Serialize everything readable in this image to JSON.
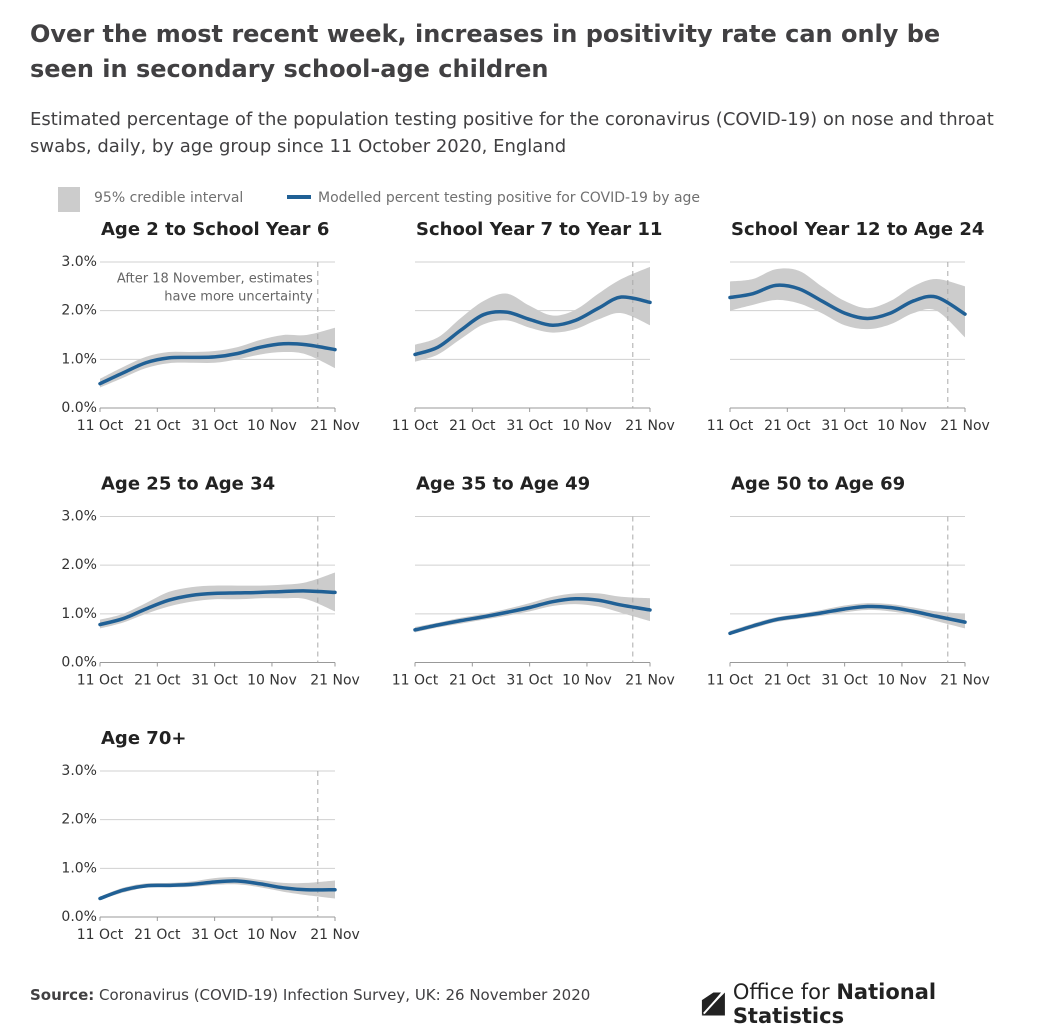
{
  "title": "Over the most recent week, increases in positivity rate can only be seen in secondary school-age children",
  "subtitle": "Estimated percentage of the population testing positive for the coronavirus (COVID-19) on nose and throat swabs, daily, by age group since 11 October 2020, England",
  "legend": {
    "band": "95% credible interval",
    "line": "Modelled percent testing positive for COVID-19 by age",
    "band_color": "#cccccc",
    "line_color": "#206095"
  },
  "source": {
    "label": "Source:",
    "text": "Coronavirus (COVID-19) Infection Survey, UK: 26 November 2020"
  },
  "logo": [
    "Office for",
    "National Statistics"
  ],
  "chart_data": [
    {
      "type": "line",
      "title": "Age 2 to School Year 6",
      "x": [
        "11 Oct",
        "15 Oct",
        "19 Oct",
        "23 Oct",
        "27 Oct",
        "31 Oct",
        "4 Nov",
        "8 Nov",
        "12 Nov",
        "16 Nov",
        "21 Nov"
      ],
      "series": [
        {
          "name": "Modelled percent testing positive for COVID-19 by age",
          "color": "#206095",
          "values": [
            0.5,
            0.72,
            0.93,
            1.03,
            1.04,
            1.05,
            1.12,
            1.25,
            1.32,
            1.3,
            1.2
          ]
        }
      ],
      "band": {
        "name": "95% credible interval",
        "color": "#cccccc",
        "lower": [
          0.42,
          0.62,
          0.82,
          0.92,
          0.93,
          0.93,
          1.0,
          1.1,
          1.15,
          1.1,
          0.82
        ],
        "upper": [
          0.6,
          0.84,
          1.05,
          1.15,
          1.15,
          1.17,
          1.25,
          1.4,
          1.5,
          1.5,
          1.65
        ]
      },
      "xlim": [
        "11 Oct",
        "21 Nov"
      ],
      "xticks": [
        "11 Oct",
        "21 Oct",
        "31 Oct",
        "10 Nov",
        "21 Nov"
      ],
      "ylim": [
        0,
        3
      ],
      "yticks": [
        {
          "value": 0,
          "label": "0.0%"
        },
        {
          "value": 1,
          "label": "1.0%"
        },
        {
          "value": 2,
          "label": "2.0%"
        },
        {
          "value": 3,
          "label": "3.0%"
        }
      ],
      "grid": true,
      "vline": "18 Nov",
      "annotation": [
        "After 18 November, estimates",
        "have more uncertainty"
      ]
    },
    {
      "type": "line",
      "title": "School Year 7 to Year 11",
      "x": [
        "11 Oct",
        "15 Oct",
        "19 Oct",
        "23 Oct",
        "27 Oct",
        "31 Oct",
        "4 Nov",
        "8 Nov",
        "12 Nov",
        "16 Nov",
        "21 Nov"
      ],
      "series": [
        {
          "name": "Modelled percent testing positive for COVID-19 by age",
          "color": "#206095",
          "values": [
            1.1,
            1.25,
            1.6,
            1.92,
            1.97,
            1.82,
            1.7,
            1.8,
            2.05,
            2.28,
            2.17
          ]
        }
      ],
      "band": {
        "name": "95% credible interval",
        "color": "#cccccc",
        "lower": [
          0.95,
          1.1,
          1.42,
          1.72,
          1.8,
          1.65,
          1.55,
          1.62,
          1.82,
          1.95,
          1.7
        ],
        "upper": [
          1.3,
          1.45,
          1.85,
          2.2,
          2.35,
          2.1,
          1.9,
          2.02,
          2.35,
          2.65,
          2.9
        ]
      },
      "xlim": [
        "11 Oct",
        "21 Nov"
      ],
      "xticks": [
        "11 Oct",
        "21 Oct",
        "31 Oct",
        "10 Nov",
        "21 Nov"
      ],
      "ylim": [
        0,
        3
      ],
      "yticks": [
        0,
        1,
        2,
        3
      ],
      "grid": true,
      "vline": "18 Nov"
    },
    {
      "type": "line",
      "title": "School Year 12 to Age 24",
      "x": [
        "11 Oct",
        "15 Oct",
        "19 Oct",
        "23 Oct",
        "27 Oct",
        "31 Oct",
        "4 Nov",
        "8 Nov",
        "12 Nov",
        "16 Nov",
        "21 Nov"
      ],
      "series": [
        {
          "name": "Modelled percent testing positive for COVID-19 by age",
          "color": "#206095",
          "values": [
            2.27,
            2.35,
            2.52,
            2.45,
            2.2,
            1.95,
            1.84,
            1.95,
            2.2,
            2.28,
            1.93
          ]
        }
      ],
      "band": {
        "name": "95% credible interval",
        "color": "#cccccc",
        "lower": [
          2.0,
          2.12,
          2.22,
          2.15,
          1.95,
          1.7,
          1.62,
          1.72,
          1.95,
          2.0,
          1.45
        ],
        "upper": [
          2.6,
          2.65,
          2.85,
          2.82,
          2.5,
          2.2,
          2.05,
          2.2,
          2.5,
          2.65,
          2.5
        ]
      },
      "xlim": [
        "11 Oct",
        "21 Nov"
      ],
      "xticks": [
        "11 Oct",
        "21 Oct",
        "31 Oct",
        "10 Nov",
        "21 Nov"
      ],
      "ylim": [
        0,
        3
      ],
      "yticks": [
        0,
        1,
        2,
        3
      ],
      "grid": true,
      "vline": "18 Nov"
    },
    {
      "type": "line",
      "title": "Age 25 to Age 34",
      "x": [
        "11 Oct",
        "15 Oct",
        "19 Oct",
        "23 Oct",
        "27 Oct",
        "31 Oct",
        "4 Nov",
        "8 Nov",
        "12 Nov",
        "16 Nov",
        "21 Nov"
      ],
      "series": [
        {
          "name": "Modelled percent testing positive for COVID-19 by age",
          "color": "#206095",
          "values": [
            0.78,
            0.9,
            1.1,
            1.28,
            1.38,
            1.42,
            1.43,
            1.44,
            1.46,
            1.47,
            1.44
          ]
        }
      ],
      "band": {
        "name": "95% credible interval",
        "color": "#cccccc",
        "lower": [
          0.7,
          0.82,
          1.0,
          1.15,
          1.25,
          1.3,
          1.3,
          1.32,
          1.32,
          1.3,
          1.05
        ],
        "upper": [
          0.88,
          1.0,
          1.22,
          1.45,
          1.55,
          1.58,
          1.58,
          1.58,
          1.6,
          1.65,
          1.85
        ]
      },
      "xlim": [
        "11 Oct",
        "21 Nov"
      ],
      "xticks": [
        "11 Oct",
        "21 Oct",
        "31 Oct",
        "10 Nov",
        "21 Nov"
      ],
      "ylim": [
        0,
        3
      ],
      "yticks": [
        {
          "value": 0,
          "label": "0.0%"
        },
        {
          "value": 1,
          "label": "1.0%"
        },
        {
          "value": 2,
          "label": "2.0%"
        },
        {
          "value": 3,
          "label": "3.0%"
        }
      ],
      "grid": true,
      "vline": "18 Nov"
    },
    {
      "type": "line",
      "title": "Age 35 to Age 49",
      "x": [
        "11 Oct",
        "15 Oct",
        "19 Oct",
        "23 Oct",
        "27 Oct",
        "31 Oct",
        "4 Nov",
        "8 Nov",
        "12 Nov",
        "16 Nov",
        "21 Nov"
      ],
      "series": [
        {
          "name": "Modelled percent testing positive for COVID-19 by age",
          "color": "#206095",
          "values": [
            0.67,
            0.77,
            0.86,
            0.94,
            1.03,
            1.13,
            1.25,
            1.31,
            1.28,
            1.18,
            1.08
          ]
        }
      ],
      "band": {
        "name": "95% credible interval",
        "color": "#cccccc",
        "lower": [
          0.62,
          0.72,
          0.8,
          0.88,
          0.96,
          1.05,
          1.16,
          1.2,
          1.15,
          1.02,
          0.85
        ],
        "upper": [
          0.73,
          0.82,
          0.92,
          1.0,
          1.1,
          1.22,
          1.35,
          1.42,
          1.42,
          1.35,
          1.32
        ]
      },
      "xlim": [
        "11 Oct",
        "21 Nov"
      ],
      "xticks": [
        "11 Oct",
        "21 Oct",
        "31 Oct",
        "10 Nov",
        "21 Nov"
      ],
      "ylim": [
        0,
        3
      ],
      "yticks": [
        0,
        1,
        2,
        3
      ],
      "grid": true,
      "vline": "18 Nov"
    },
    {
      "type": "line",
      "title": "Age 50 to Age 69",
      "x": [
        "11 Oct",
        "15 Oct",
        "19 Oct",
        "23 Oct",
        "27 Oct",
        "31 Oct",
        "4 Nov",
        "8 Nov",
        "12 Nov",
        "16 Nov",
        "21 Nov"
      ],
      "series": [
        {
          "name": "Modelled percent testing positive for COVID-19 by age",
          "color": "#206095",
          "values": [
            0.6,
            0.75,
            0.88,
            0.95,
            1.02,
            1.1,
            1.15,
            1.13,
            1.05,
            0.95,
            0.83
          ]
        }
      ],
      "band": {
        "name": "95% credible interval",
        "color": "#cccccc",
        "lower": [
          0.56,
          0.7,
          0.83,
          0.9,
          0.96,
          1.03,
          1.08,
          1.05,
          0.97,
          0.85,
          0.7
        ],
        "upper": [
          0.65,
          0.8,
          0.93,
          1.0,
          1.08,
          1.17,
          1.22,
          1.2,
          1.13,
          1.05,
          1.0
        ]
      },
      "xlim": [
        "11 Oct",
        "21 Nov"
      ],
      "xticks": [
        "11 Oct",
        "21 Oct",
        "31 Oct",
        "10 Nov",
        "21 Nov"
      ],
      "ylim": [
        0,
        3
      ],
      "yticks": [
        0,
        1,
        2,
        3
      ],
      "grid": true,
      "vline": "18 Nov"
    },
    {
      "type": "line",
      "title": "Age 70+",
      "x": [
        "11 Oct",
        "15 Oct",
        "19 Oct",
        "23 Oct",
        "27 Oct",
        "31 Oct",
        "4 Nov",
        "8 Nov",
        "12 Nov",
        "16 Nov",
        "21 Nov"
      ],
      "series": [
        {
          "name": "Modelled percent testing positive for COVID-19 by age",
          "color": "#206095",
          "values": [
            0.38,
            0.55,
            0.64,
            0.65,
            0.67,
            0.72,
            0.74,
            0.68,
            0.6,
            0.56,
            0.56
          ]
        }
      ],
      "band": {
        "name": "95% credible interval",
        "color": "#cccccc",
        "lower": [
          0.35,
          0.5,
          0.6,
          0.61,
          0.62,
          0.66,
          0.67,
          0.61,
          0.52,
          0.45,
          0.38
        ],
        "upper": [
          0.42,
          0.6,
          0.69,
          0.7,
          0.73,
          0.8,
          0.82,
          0.76,
          0.7,
          0.7,
          0.75
        ]
      },
      "xlim": [
        "11 Oct",
        "21 Nov"
      ],
      "xticks": [
        "11 Oct",
        "21 Oct",
        "31 Oct",
        "10 Nov",
        "21 Nov"
      ],
      "ylim": [
        0,
        3
      ],
      "yticks": [
        {
          "value": 0,
          "label": "0.0%"
        },
        {
          "value": 1,
          "label": "1.0%"
        },
        {
          "value": 2,
          "label": "2.0%"
        },
        {
          "value": 3,
          "label": "3.0%"
        }
      ],
      "grid": true,
      "vline": "18 Nov"
    }
  ]
}
